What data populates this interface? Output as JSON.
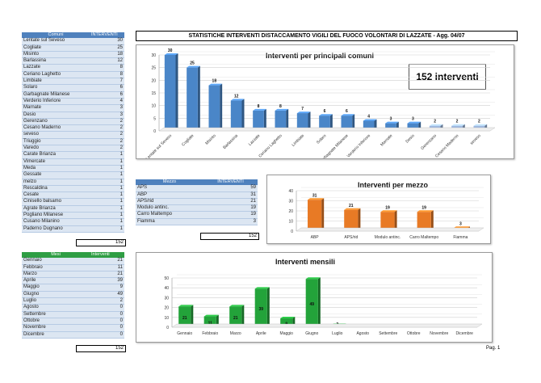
{
  "header": {
    "title": "STATISTICHE INTERVENTI DISTACCAMENTO VIGILI DEL FUOCO VOLONTARI DI LAZZATE - Agg. 04/07"
  },
  "comuni_table": {
    "col1": "Comuni",
    "col2": "INTERVENTI",
    "rows": [
      [
        "Lentate sul Seveso",
        "30"
      ],
      [
        "Cogliate",
        "25"
      ],
      [
        "Misinto",
        "18"
      ],
      [
        "Barlassina",
        "12"
      ],
      [
        "Lazzate",
        "8"
      ],
      [
        "Ceriano Laghetto",
        "8"
      ],
      [
        "Limbiate",
        "7"
      ],
      [
        "Solaro",
        "6"
      ],
      [
        "Garbagnate Milanese",
        "6"
      ],
      [
        "Verderio Inferiore",
        "4"
      ],
      [
        "Marnate",
        "3"
      ],
      [
        "Desio",
        "3"
      ],
      [
        "Gerenzano",
        "2"
      ],
      [
        "Cesano Maderno",
        "2"
      ],
      [
        "seveso",
        "2"
      ],
      [
        "Triuggio",
        "2"
      ],
      [
        "Varedo",
        "2"
      ],
      [
        "Carate Brianza",
        "1"
      ],
      [
        "Vimercate",
        "1"
      ],
      [
        "Meda",
        "1"
      ],
      [
        "Gessate",
        "1"
      ],
      [
        "melzo",
        "1"
      ],
      [
        "Rescaldina",
        "1"
      ],
      [
        "Cesate",
        "1"
      ],
      [
        "Cinisello balsamo",
        "1"
      ],
      [
        "Agrate Brianza",
        "1"
      ],
      [
        "Pogliano Milanese",
        "1"
      ],
      [
        "Cusano Milanino",
        "1"
      ],
      [
        "Paderno Dugnano",
        "1"
      ]
    ],
    "total": "152"
  },
  "mezzo_table": {
    "col1": "Mezzo",
    "col2": "INTERVENTI",
    "rows": [
      [
        "APS",
        "59"
      ],
      [
        "ABP",
        "31"
      ],
      [
        "APS/rid",
        "21"
      ],
      [
        "Modulo antinc.",
        "19"
      ],
      [
        "Carro Maltempo",
        "19"
      ],
      [
        "Fiamma",
        "3"
      ]
    ],
    "total": "152"
  },
  "mesi_table": {
    "col1": "Mesi",
    "col2": "Interventi",
    "rows": [
      [
        "Gennaio",
        "21"
      ],
      [
        "Febbraio",
        "11"
      ],
      [
        "Marzo",
        "21"
      ],
      [
        "Aprile",
        "39"
      ],
      [
        "Maggio",
        "9"
      ],
      [
        "Giugno",
        "49"
      ],
      [
        "Luglio",
        "2"
      ],
      [
        "Agosto",
        "0"
      ],
      [
        "Settembre",
        "0"
      ],
      [
        "Ottobre",
        "0"
      ],
      [
        "Novembre",
        "0"
      ],
      [
        "Dicembre",
        "0"
      ]
    ],
    "total": "152"
  },
  "badge": {
    "text": "152 interventi"
  },
  "footer": {
    "page": "Pag. 1"
  },
  "chart_data": [
    {
      "type": "bar",
      "title": "Interventi per principali comuni",
      "categories": [
        "Lentate sul Seveso",
        "Cogliate",
        "Misinto",
        "Barlassina",
        "Lazzate",
        "Ceriano Laghetto",
        "Limbiate",
        "Solaro",
        "Garbagnate Milanese",
        "Verderio Inferiore",
        "Marnate",
        "Desio",
        "Gerenzano",
        "Cesano Maderno",
        "seveso"
      ],
      "values": [
        30,
        25,
        18,
        12,
        8,
        8,
        7,
        6,
        6,
        4,
        3,
        3,
        2,
        2,
        2
      ],
      "ylim": [
        0,
        30
      ],
      "yticks": [
        0,
        5,
        10,
        15,
        20,
        25,
        30
      ],
      "color": "#4a86c8",
      "color_last": "#9db8e0"
    },
    {
      "type": "bar",
      "title": "Interventi per mezzo",
      "categories": [
        "ABP",
        "APS/rid",
        "Modulo antinc.",
        "Carro Maltempo",
        "Fiamma"
      ],
      "values": [
        31,
        21,
        19,
        19,
        3
      ],
      "ylim": [
        0,
        40
      ],
      "yticks": [
        0,
        10,
        20,
        30,
        40
      ],
      "color": "#e87a25"
    },
    {
      "type": "bar",
      "title": "Interventi mensili",
      "categories": [
        "Gennaio",
        "Febbraio",
        "Marzo",
        "Aprile",
        "Maggio",
        "Giugno",
        "Luglio",
        "Agosto",
        "Settembre",
        "Ottobre",
        "Novembre",
        "Dicembre"
      ],
      "values": [
        21,
        11,
        21,
        39,
        9,
        49,
        2,
        0,
        0,
        0,
        0,
        0
      ],
      "ylim": [
        0,
        50
      ],
      "yticks": [
        0,
        10,
        20,
        30,
        40,
        50
      ],
      "color": "#23a33a"
    }
  ]
}
